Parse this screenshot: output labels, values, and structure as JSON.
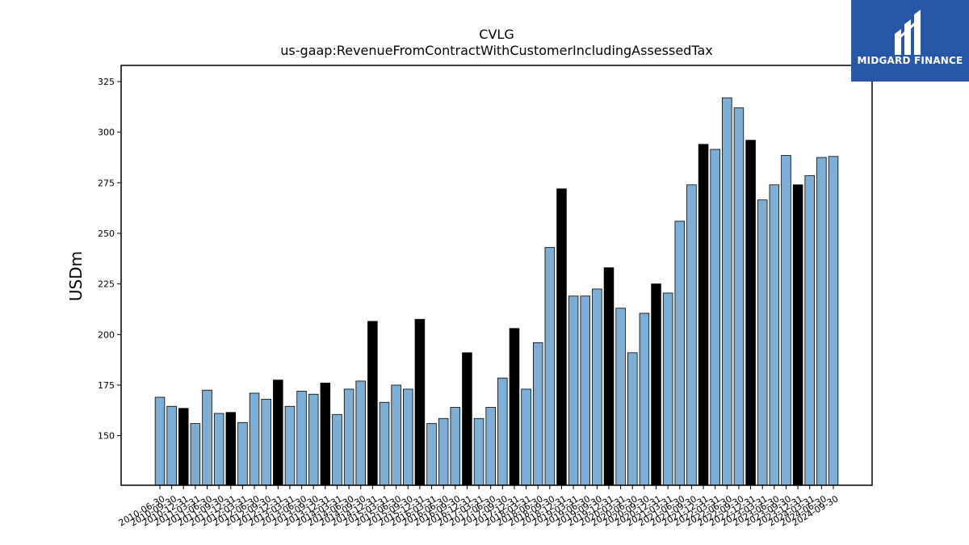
{
  "chart_data": {
    "type": "bar",
    "title": "CVLG",
    "subtitle": "us-gaap:RevenueFromContractWithCustomerIncludingAssessedTax",
    "xlabel": "",
    "ylabel": "USDm",
    "ylim": [
      125.5,
      333
    ],
    "yticks": [
      150,
      175,
      200,
      225,
      250,
      275,
      300,
      325
    ],
    "grid": false,
    "colors": {
      "quarter": "#7eaed4",
      "annual": "#000000",
      "edge": "#000000"
    },
    "categories": [
      "2010-06-30",
      "2010-09-30",
      "2010-12-31",
      "2011-03-31",
      "2011-06-30",
      "2011-09-30",
      "2011-12-31",
      "2012-03-31",
      "2012-06-30",
      "2012-09-30",
      "2012-12-31",
      "2013-03-31",
      "2013-06-30",
      "2013-09-30",
      "2013-12-31",
      "2014-03-31",
      "2014-06-30",
      "2014-09-30",
      "2014-12-31",
      "2015-03-31",
      "2015-06-30",
      "2015-09-30",
      "2015-12-31",
      "2016-03-31",
      "2016-06-30",
      "2016-09-30",
      "2016-12-31",
      "2017-03-31",
      "2017-06-30",
      "2017-09-30",
      "2017-12-31",
      "2018-03-31",
      "2018-06-30",
      "2018-09-30",
      "2018-12-31",
      "2019-03-31",
      "2019-06-30",
      "2019-09-30",
      "2019-12-31",
      "2020-03-31",
      "2020-06-30",
      "2020-09-30",
      "2020-12-31",
      "2021-03-31",
      "2021-06-30",
      "2021-09-30",
      "2021-12-31",
      "2022-03-31",
      "2022-06-30",
      "2022-09-30",
      "2022-12-31",
      "2023-03-31",
      "2023-06-30",
      "2023-09-30",
      "2023-12-31",
      "2024-03-31",
      "2024-06-30",
      "2024-09-30"
    ],
    "values": [
      169,
      164.5,
      163.5,
      156,
      172.5,
      161,
      161.5,
      156.5,
      171,
      168,
      177.5,
      164.5,
      172,
      170.5,
      176,
      160.5,
      173,
      177,
      206.5,
      166.5,
      175,
      173,
      207.5,
      156,
      158.5,
      164,
      191,
      158.5,
      164,
      178.5,
      203,
      173,
      196,
      243,
      272,
      219,
      219,
      222.5,
      233,
      213,
      191,
      210.5,
      225,
      220.5,
      256,
      274,
      294,
      291.5,
      317,
      312,
      296,
      266.5,
      274,
      288.5,
      274,
      278.5,
      287.5,
      288
    ],
    "annual_flags": [
      0,
      0,
      1,
      0,
      0,
      0,
      1,
      0,
      0,
      0,
      1,
      0,
      0,
      0,
      1,
      0,
      0,
      0,
      1,
      0,
      0,
      0,
      1,
      0,
      0,
      0,
      1,
      0,
      0,
      0,
      1,
      0,
      0,
      0,
      1,
      0,
      0,
      0,
      1,
      0,
      0,
      0,
      1,
      0,
      0,
      0,
      1,
      0,
      0,
      0,
      1,
      0,
      0,
      0,
      1,
      0,
      0,
      0
    ]
  },
  "logo": {
    "text": "MIDGARD FINANCE",
    "icon": "midgard-finance-logo-icon"
  }
}
